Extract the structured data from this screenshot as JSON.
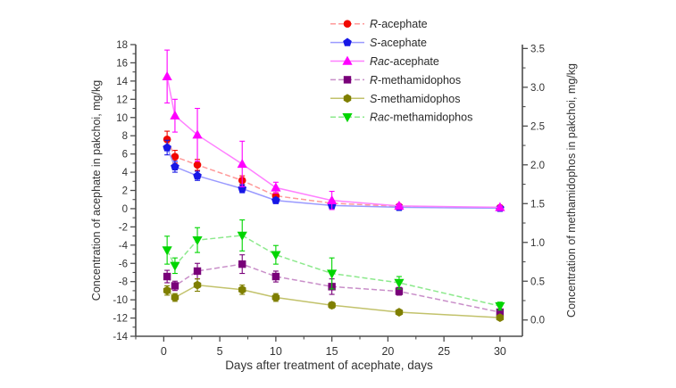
{
  "chart_data": {
    "type": "line",
    "title": "",
    "x": [
      0.3,
      1,
      3,
      7,
      10,
      15,
      21,
      30
    ],
    "axes": {
      "x": {
        "label": "Days after treatment of acephate, days",
        "range": [
          -2.5,
          32
        ],
        "major_ticks": [
          0,
          5,
          10,
          15,
          20,
          25,
          30
        ],
        "minor_tick_step": 2.5
      },
      "left": {
        "label": "Concentration of acephate in pakchoi, mg/kg",
        "range": [
          -14,
          18
        ],
        "major_tick_step": 2,
        "minor_tick_step": 1
      },
      "right": {
        "label": "Concentration of methamidophos in pakchoi, mg/kg",
        "range": [
          -0.21,
          3.55
        ],
        "major_ticks": [
          0.0,
          0.5,
          1.0,
          1.5,
          2.0,
          2.5,
          3.0,
          3.5
        ],
        "major_tick_labels": [
          "0.0",
          "0.5",
          "1.0",
          "1.5",
          "2.0",
          "2.5",
          "3.0",
          "3.5"
        ],
        "minor_tick_step": 0.25
      }
    },
    "legend": {
      "position": "inside-top-right",
      "entries": [
        "R-acephate",
        "S-acephate",
        "Rac-acephate",
        "R-methamidophos",
        "S-methamidophos",
        "Rac-methamidophos"
      ]
    },
    "series": [
      {
        "key": "r-acephate",
        "label_italic": "R",
        "label_rest": "-acephate",
        "axis": "left",
        "marker": "circle",
        "marker_color": "#f10800",
        "line_color": "#ff9a9a",
        "line_style": "dashed",
        "values": [
          7.6,
          5.7,
          4.8,
          3.1,
          1.4,
          0.6,
          0.25,
          0.1
        ],
        "errors": [
          0.9,
          0.7,
          0.6,
          0.5,
          0.35,
          0.3,
          0.15,
          0.1
        ]
      },
      {
        "key": "s-acephate",
        "label_italic": "S",
        "label_rest": "-acephate",
        "axis": "left",
        "marker": "pentagon",
        "marker_color": "#1717e6",
        "line_color": "#9a9aff",
        "line_style": "solid",
        "values": [
          6.7,
          4.6,
          3.6,
          2.2,
          0.9,
          0.35,
          0.15,
          0.05
        ],
        "errors": [
          0.8,
          0.6,
          0.5,
          0.45,
          0.3,
          0.2,
          0.1,
          0.08
        ]
      },
      {
        "key": "rac-acephate",
        "label_italic": "Rac",
        "label_rest": "-acephate",
        "axis": "left",
        "marker": "triangle-up",
        "marker_color": "#ff00ff",
        "line_color": "#ff80ff",
        "line_style": "solid",
        "values": [
          14.5,
          10.2,
          8.1,
          4.9,
          2.3,
          0.9,
          0.3,
          0.15
        ],
        "errors": [
          2.9,
          1.8,
          2.9,
          2.5,
          0.6,
          1.0,
          0.2,
          0.12
        ]
      },
      {
        "key": "r-methamidophos",
        "label_italic": "R",
        "label_rest": "-methamidophos",
        "axis": "right",
        "marker": "square",
        "marker_color": "#790079",
        "line_color": "#c98fc9",
        "line_style": "dashed",
        "values": [
          0.56,
          0.44,
          0.63,
          0.72,
          0.56,
          0.43,
          0.37,
          0.1
        ],
        "errors": [
          0.08,
          0.06,
          0.1,
          0.12,
          0.07,
          0.1,
          0.05,
          0.03
        ]
      },
      {
        "key": "s-methamidophos",
        "label_italic": "S",
        "label_rest": "-methamidophos",
        "axis": "right",
        "marker": "hexagon",
        "marker_color": "#7f7f00",
        "line_color": "#c2c26b",
        "line_style": "solid",
        "values": [
          0.38,
          0.29,
          0.45,
          0.39,
          0.29,
          0.19,
          0.1,
          0.03
        ],
        "errors": [
          0.06,
          0.05,
          0.08,
          0.06,
          0.05,
          0.04,
          0.03,
          0.02
        ]
      },
      {
        "key": "rac-methamidophos",
        "label_italic": "Rac",
        "label_rest": "-methamidophos",
        "axis": "right",
        "marker": "triangle-down",
        "marker_color": "#00d500",
        "line_color": "#8ce98c",
        "line_style": "dashed",
        "values": [
          0.9,
          0.7,
          1.03,
          1.09,
          0.84,
          0.6,
          0.48,
          0.18
        ],
        "errors": [
          0.18,
          0.1,
          0.16,
          0.2,
          0.12,
          0.2,
          0.08,
          0.05
        ]
      }
    ],
    "style": {
      "axis_color": "#4d4d4d",
      "text_color": "#333333",
      "background": "#ffffff"
    }
  }
}
